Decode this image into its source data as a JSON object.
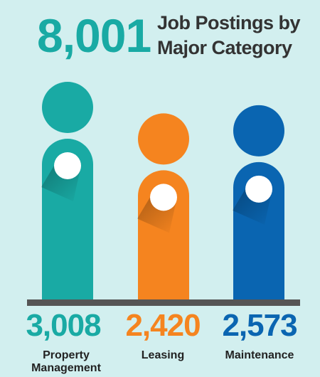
{
  "header": {
    "total": "8,001",
    "title_line1": "Job Postings by",
    "title_line2": "Major Category"
  },
  "colors": {
    "background": "#d2efef",
    "teal": "#19aaa4",
    "orange": "#f5841f",
    "blue": "#0a65b1",
    "baseline": "#555555"
  },
  "chart_data": {
    "type": "bar",
    "categories": [
      "Property\nManagement",
      "Leasing",
      "Maintenance"
    ],
    "values": [
      3008,
      2420,
      2573
    ],
    "value_labels": [
      "3,008",
      "2,420",
      "2,573"
    ],
    "total": 8001,
    "title": "Job Postings by Major Category",
    "series_colors": [
      "#19aaa4",
      "#f5841f",
      "#0a65b1"
    ]
  },
  "bars": [
    {
      "value_label": "3,008",
      "label_line1": "Property",
      "label_line2": "Management"
    },
    {
      "value_label": "2,420",
      "label_line1": "Leasing",
      "label_line2": ""
    },
    {
      "value_label": "2,573",
      "label_line1": "Maintenance",
      "label_line2": ""
    }
  ]
}
